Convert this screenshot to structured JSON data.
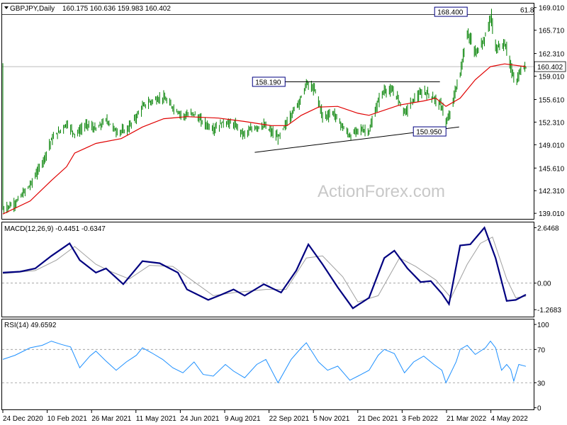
{
  "header": {
    "symbol": "GBPJPY,Daily",
    "ohlc": "160.175 160.636 159.983 160.402"
  },
  "watermark": "ActionForex.com",
  "colors": {
    "candle": "#008000",
    "ma": "#e00000",
    "macd_main": "#000080",
    "macd_signal": "#a0a0a0",
    "rsi": "#1e90ff",
    "trendline": "#000000",
    "label_border": "#000080"
  },
  "chart_data": [
    {
      "type": "candlestick",
      "panel": "price",
      "ylim": [
        138.2,
        169.6
      ],
      "yticks": [
        "169.010",
        "165.710",
        "162.310",
        "159.010",
        "155.610",
        "152.310",
        "149.010",
        "145.610",
        "142.310",
        "139.010"
      ],
      "ytick_values": [
        169.01,
        165.71,
        162.31,
        159.01,
        155.61,
        152.31,
        149.01,
        145.61,
        142.31,
        139.01
      ],
      "last_price": "160.402",
      "last_price_value": 160.402,
      "level_label": "61.8",
      "level_value": 168.0,
      "annotations": [
        {
          "text": "158.190",
          "value": 158.19,
          "date": "2021-09-29"
        },
        {
          "text": "150.950",
          "value": 150.95,
          "date": "2022-03-07"
        },
        {
          "text": "168.400",
          "value": 168.4,
          "date": "2022-03-28"
        }
      ],
      "trendlines": [
        {
          "from": [
            "2021-09-29",
            158.19
          ],
          "to": [
            "2022-03-01",
            158.19
          ]
        },
        {
          "from": [
            "2021-08-30",
            147.9
          ],
          "to": [
            "2022-03-20",
            151.6
          ]
        }
      ],
      "xlabels": [
        "24 Dec 2020",
        "10 Feb 2021",
        "26 Mar 2021",
        "11 May 2021",
        "24 Jun 2021",
        "9 Aug 2021",
        "22 Sep 2021",
        "5 Nov 2021",
        "21 Dec 2021",
        "3 Feb 2022",
        "21 Mar 2022",
        "4 May 2022"
      ],
      "x_start": "2020-12-24",
      "x_end": "2022-05-25",
      "close_path": [
        [
          "2020-12-24",
          139.6
        ],
        [
          "2021-01-05",
          140.5
        ],
        [
          "2021-01-20",
          143.2
        ],
        [
          "2021-02-01",
          146.5
        ],
        [
          "2021-02-10",
          149.8
        ],
        [
          "2021-02-25",
          152.1
        ],
        [
          "2021-03-05",
          150.5
        ],
        [
          "2021-03-17",
          152.0
        ],
        [
          "2021-03-26",
          151.2
        ],
        [
          "2021-04-05",
          152.7
        ],
        [
          "2021-04-15",
          150.9
        ],
        [
          "2021-04-25",
          151.1
        ],
        [
          "2021-05-05",
          153.2
        ],
        [
          "2021-05-11",
          154.6
        ],
        [
          "2021-05-20",
          155.4
        ],
        [
          "2021-05-31",
          155.9
        ],
        [
          "2021-06-10",
          154.4
        ],
        [
          "2021-06-20",
          153.2
        ],
        [
          "2021-06-30",
          153.6
        ],
        [
          "2021-07-10",
          152.2
        ],
        [
          "2021-07-20",
          151.3
        ],
        [
          "2021-07-30",
          152.3
        ],
        [
          "2021-08-09",
          152.0
        ],
        [
          "2021-08-19",
          150.5
        ],
        [
          "2021-08-29",
          151.5
        ],
        [
          "2021-09-08",
          151.8
        ],
        [
          "2021-09-22",
          150.0
        ],
        [
          "2021-10-05",
          153.5
        ],
        [
          "2021-10-15",
          156.0
        ],
        [
          "2021-10-20",
          158.0
        ],
        [
          "2021-10-29",
          156.8
        ],
        [
          "2021-11-05",
          153.0
        ],
        [
          "2021-11-15",
          153.7
        ],
        [
          "2021-11-25",
          151.5
        ],
        [
          "2021-12-02",
          150.2
        ],
        [
          "2021-12-10",
          151.3
        ],
        [
          "2021-12-21",
          151.0
        ],
        [
          "2021-12-30",
          155.5
        ],
        [
          "2022-01-05",
          157.0
        ],
        [
          "2022-01-15",
          156.7
        ],
        [
          "2022-01-25",
          153.7
        ],
        [
          "2022-02-03",
          155.7
        ],
        [
          "2022-02-13",
          156.8
        ],
        [
          "2022-02-23",
          155.8
        ],
        [
          "2022-03-03",
          154.5
        ],
        [
          "2022-03-07",
          152.0
        ],
        [
          "2022-03-12",
          154.2
        ],
        [
          "2022-03-17",
          157.5
        ],
        [
          "2022-03-21",
          159.5
        ],
        [
          "2022-03-25",
          163.0
        ],
        [
          "2022-03-28",
          165.4
        ],
        [
          "2022-04-05",
          162.3
        ],
        [
          "2022-04-15",
          164.8
        ],
        [
          "2022-04-20",
          167.8
        ],
        [
          "2022-04-25",
          163.0
        ],
        [
          "2022-05-04",
          163.8
        ],
        [
          "2022-05-10",
          160.0
        ],
        [
          "2022-05-15",
          158.0
        ],
        [
          "2022-05-20",
          160.0
        ],
        [
          "2022-05-25",
          160.4
        ]
      ],
      "ma_path": [
        [
          "2020-12-24",
          138.9
        ],
        [
          "2021-01-20",
          140.8
        ],
        [
          "2021-02-10",
          143.8
        ],
        [
          "2021-02-25",
          145.8
        ],
        [
          "2021-03-05",
          147.8
        ],
        [
          "2021-03-26",
          149.2
        ],
        [
          "2021-04-20",
          149.9
        ],
        [
          "2021-05-11",
          151.6
        ],
        [
          "2021-06-01",
          152.8
        ],
        [
          "2021-06-24",
          153.1
        ],
        [
          "2021-07-25",
          152.9
        ],
        [
          "2021-08-20",
          152.4
        ],
        [
          "2021-09-15",
          151.8
        ],
        [
          "2021-10-01",
          151.8
        ],
        [
          "2021-10-15",
          153.3
        ],
        [
          "2021-11-01",
          154.5
        ],
        [
          "2021-11-20",
          154.6
        ],
        [
          "2021-12-10",
          153.6
        ],
        [
          "2021-12-21",
          153.3
        ],
        [
          "2022-01-20",
          154.8
        ],
        [
          "2022-02-13",
          155.4
        ],
        [
          "2022-02-25",
          155.8
        ],
        [
          "2022-03-07",
          154.6
        ],
        [
          "2022-03-21",
          155.8
        ],
        [
          "2022-04-05",
          158.5
        ],
        [
          "2022-04-20",
          160.4
        ],
        [
          "2022-05-04",
          160.8
        ],
        [
          "2022-05-25",
          160.4
        ]
      ]
    },
    {
      "type": "line",
      "panel": "macd",
      "title": "MACD(12,26,9) -0.4451 -0.6347",
      "ylim": [
        -1.6,
        2.9
      ],
      "yticks": [
        "2.6468",
        "0.00",
        "-1.2683"
      ],
      "ytick_values": [
        2.6468,
        0.0,
        -1.2683
      ],
      "reference_lines": [
        0.0
      ],
      "series": [
        {
          "values_path": [
            [
              "2020-12-24",
              0.5
            ],
            [
              "2021-01-10",
              0.55
            ],
            [
              "2021-01-25",
              0.7
            ],
            [
              "2021-02-10",
              1.3
            ],
            [
              "2021-02-28",
              1.9
            ],
            [
              "2021-03-10",
              1.1
            ],
            [
              "2021-03-26",
              0.5
            ],
            [
              "2021-04-05",
              0.7
            ],
            [
              "2021-04-22",
              -0.05
            ],
            [
              "2021-05-11",
              1.05
            ],
            [
              "2021-05-28",
              0.95
            ],
            [
              "2021-06-15",
              0.5
            ],
            [
              "2021-06-24",
              -0.3
            ],
            [
              "2021-07-15",
              -0.8
            ],
            [
              "2021-07-28",
              -0.55
            ],
            [
              "2021-08-09",
              -0.3
            ],
            [
              "2021-08-20",
              -0.6
            ],
            [
              "2021-09-08",
              -0.05
            ],
            [
              "2021-09-25",
              -0.45
            ],
            [
              "2021-10-10",
              0.6
            ],
            [
              "2021-10-22",
              1.85
            ],
            [
              "2021-11-05",
              0.9
            ],
            [
              "2021-11-20",
              -0.2
            ],
            [
              "2021-12-05",
              -1.2
            ],
            [
              "2021-12-21",
              -0.7
            ],
            [
              "2022-01-05",
              1.2
            ],
            [
              "2022-01-15",
              1.55
            ],
            [
              "2022-01-28",
              0.7
            ],
            [
              "2022-02-10",
              0.05
            ],
            [
              "2022-02-20",
              0.1
            ],
            [
              "2022-03-03",
              -0.5
            ],
            [
              "2022-03-10",
              -1.0
            ],
            [
              "2022-03-21",
              1.8
            ],
            [
              "2022-03-31",
              1.85
            ],
            [
              "2022-04-14",
              2.65
            ],
            [
              "2022-04-25",
              1.2
            ],
            [
              "2022-05-06",
              -0.85
            ],
            [
              "2022-05-15",
              -0.8
            ],
            [
              "2022-05-25",
              -0.55
            ]
          ]
        },
        {
          "values_path": [
            [
              "2020-12-24",
              0.45
            ],
            [
              "2021-01-25",
              0.6
            ],
            [
              "2021-02-15",
              1.1
            ],
            [
              "2021-03-05",
              1.75
            ],
            [
              "2021-03-26",
              0.9
            ],
            [
              "2021-04-10",
              0.55
            ],
            [
              "2021-04-28",
              0.2
            ],
            [
              "2021-05-18",
              0.85
            ],
            [
              "2021-06-10",
              0.8
            ],
            [
              "2021-06-30",
              0.1
            ],
            [
              "2021-07-20",
              -0.6
            ],
            [
              "2021-08-10",
              -0.45
            ],
            [
              "2021-09-10",
              -0.3
            ],
            [
              "2021-09-30",
              -0.3
            ],
            [
              "2021-10-20",
              1.2
            ],
            [
              "2021-11-05",
              1.3
            ],
            [
              "2021-11-25",
              0.3
            ],
            [
              "2021-12-10",
              -0.9
            ],
            [
              "2021-12-30",
              -0.6
            ],
            [
              "2022-01-20",
              1.2
            ],
            [
              "2022-02-05",
              0.8
            ],
            [
              "2022-02-25",
              0.15
            ],
            [
              "2022-03-12",
              -0.7
            ],
            [
              "2022-03-28",
              0.9
            ],
            [
              "2022-04-10",
              1.9
            ],
            [
              "2022-04-22",
              2.2
            ],
            [
              "2022-05-06",
              0.2
            ],
            [
              "2022-05-15",
              -0.7
            ],
            [
              "2022-05-25",
              -0.63
            ]
          ]
        }
      ]
    },
    {
      "type": "line",
      "panel": "rsi",
      "title": "RSI(14) 49.6592",
      "ylim": [
        -2,
        106
      ],
      "yticks": [
        "100",
        "70",
        "30",
        "0"
      ],
      "ytick_values": [
        100,
        70,
        30,
        0
      ],
      "reference_lines": [
        70,
        30
      ],
      "series": [
        {
          "values_path": [
            [
              "2020-12-24",
              58
            ],
            [
              "2021-01-05",
              63
            ],
            [
              "2021-01-20",
              72
            ],
            [
              "2021-02-01",
              75
            ],
            [
              "2021-02-10",
              80
            ],
            [
              "2021-02-20",
              76
            ],
            [
              "2021-03-01",
              73
            ],
            [
              "2021-03-10",
              48
            ],
            [
              "2021-03-20",
              62
            ],
            [
              "2021-03-26",
              68
            ],
            [
              "2021-04-05",
              56
            ],
            [
              "2021-04-15",
              45
            ],
            [
              "2021-04-25",
              55
            ],
            [
              "2021-05-05",
              63
            ],
            [
              "2021-05-11",
              72
            ],
            [
              "2021-05-20",
              66
            ],
            [
              "2021-05-31",
              58
            ],
            [
              "2021-06-10",
              48
            ],
            [
              "2021-06-20",
              42
            ],
            [
              "2021-07-01",
              55
            ],
            [
              "2021-07-10",
              40
            ],
            [
              "2021-07-20",
              38
            ],
            [
              "2021-08-01",
              52
            ],
            [
              "2021-08-09",
              44
            ],
            [
              "2021-08-20",
              36
            ],
            [
              "2021-09-01",
              52
            ],
            [
              "2021-09-10",
              58
            ],
            [
              "2021-09-22",
              30
            ],
            [
              "2021-10-05",
              58
            ],
            [
              "2021-10-15",
              72
            ],
            [
              "2021-10-20",
              78
            ],
            [
              "2021-11-01",
              55
            ],
            [
              "2021-11-10",
              45
            ],
            [
              "2021-11-20",
              50
            ],
            [
              "2021-12-02",
              33
            ],
            [
              "2021-12-10",
              38
            ],
            [
              "2021-12-21",
              45
            ],
            [
              "2021-12-30",
              63
            ],
            [
              "2022-01-05",
              70
            ],
            [
              "2022-01-15",
              65
            ],
            [
              "2022-01-25",
              42
            ],
            [
              "2022-02-03",
              55
            ],
            [
              "2022-02-13",
              62
            ],
            [
              "2022-02-23",
              52
            ],
            [
              "2022-03-03",
              45
            ],
            [
              "2022-03-07",
              30
            ],
            [
              "2022-03-17",
              55
            ],
            [
              "2022-03-21",
              70
            ],
            [
              "2022-03-28",
              75
            ],
            [
              "2022-04-05",
              64
            ],
            [
              "2022-04-15",
              72
            ],
            [
              "2022-04-20",
              80
            ],
            [
              "2022-04-25",
              72
            ],
            [
              "2022-05-01",
              45
            ],
            [
              "2022-05-06",
              52
            ],
            [
              "2022-05-10",
              46
            ],
            [
              "2022-05-13",
              32
            ],
            [
              "2022-05-18",
              52
            ],
            [
              "2022-05-25",
              49.7
            ]
          ]
        }
      ]
    }
  ]
}
